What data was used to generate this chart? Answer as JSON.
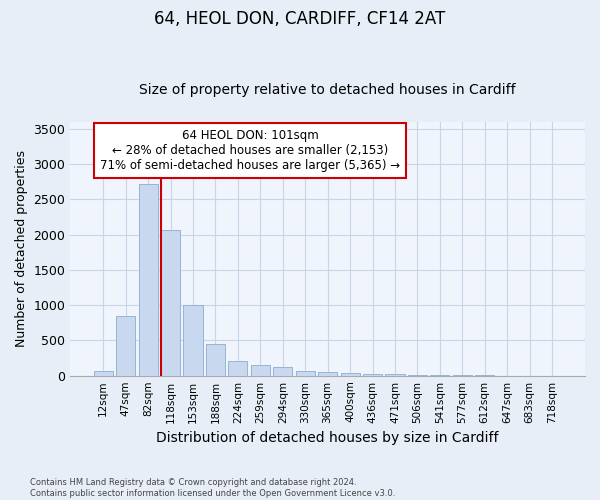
{
  "title": "64, HEOL DON, CARDIFF, CF14 2AT",
  "subtitle": "Size of property relative to detached houses in Cardiff",
  "xlabel": "Distribution of detached houses by size in Cardiff",
  "ylabel": "Number of detached properties",
  "categories": [
    "12sqm",
    "47sqm",
    "82sqm",
    "118sqm",
    "153sqm",
    "188sqm",
    "224sqm",
    "259sqm",
    "294sqm",
    "330sqm",
    "365sqm",
    "400sqm",
    "436sqm",
    "471sqm",
    "506sqm",
    "541sqm",
    "577sqm",
    "612sqm",
    "647sqm",
    "683sqm",
    "718sqm"
  ],
  "values": [
    60,
    850,
    2720,
    2060,
    1000,
    455,
    215,
    150,
    130,
    65,
    50,
    40,
    30,
    20,
    10,
    6,
    4,
    3,
    2,
    2,
    1
  ],
  "bar_color": "#c8d8ee",
  "bar_edge_color": "#8aaed0",
  "vline_x_index": 3,
  "vline_color": "#cc0000",
  "annotation_box_text": "64 HEOL DON: 101sqm\n← 28% of detached houses are smaller (2,153)\n71% of semi-detached houses are larger (5,365) →",
  "annotation_box_color": "#cc0000",
  "annotation_box_bg": "#ffffff",
  "ylim": [
    0,
    3600
  ],
  "yticks": [
    0,
    500,
    1000,
    1500,
    2000,
    2500,
    3000,
    3500
  ],
  "grid_color": "#c8d4e8",
  "bg_color": "#e8eef8",
  "plot_bg_color": "#f0f4fc",
  "footnote": "Contains HM Land Registry data © Crown copyright and database right 2024.\nContains public sector information licensed under the Open Government Licence v3.0.",
  "title_fontsize": 12,
  "subtitle_fontsize": 10,
  "xlabel_fontsize": 10,
  "ylabel_fontsize": 9
}
